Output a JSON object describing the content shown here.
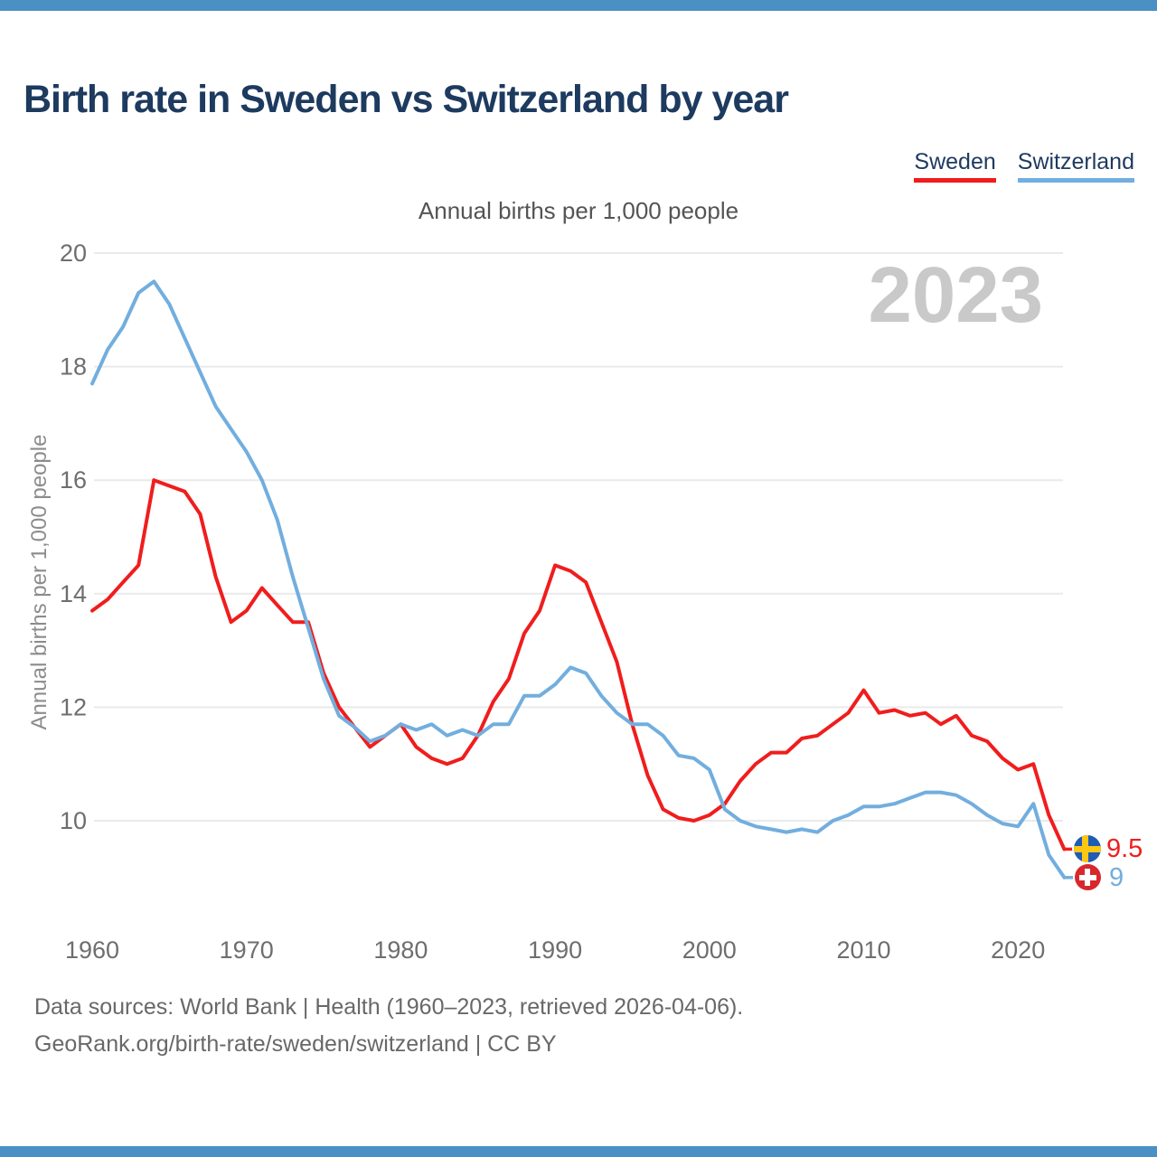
{
  "page": {
    "accent_bar_color": "#4a90c4",
    "background": "#ffffff",
    "title_color": "#1d3a5f"
  },
  "header": {
    "title": "Birth rate in Sweden vs Switzerland by year"
  },
  "legend": {
    "items": [
      {
        "label": "Sweden",
        "color": "#f01d1d"
      },
      {
        "label": "Switzerland",
        "color": "#72aede"
      }
    ]
  },
  "chart": {
    "subtitle": "Annual births per 1,000 people",
    "y_axis_title": "Annual births per 1,000 people",
    "watermark": "2023",
    "grid_color": "#eaeaea",
    "tick_color": "#6e6e6e"
  },
  "icons": {
    "sweden_flag": {
      "background": "#1e5cb5",
      "cross": "#fdc613"
    },
    "switzerland_flag": {
      "background": "#d7282c",
      "cross": "#ffffff"
    }
  },
  "chart_data": {
    "type": "line",
    "title": "Birth rate in Sweden vs Switzerland by year",
    "subtitle": "Annual births per 1,000 people",
    "xlabel": "",
    "ylabel": "Annual births per 1,000 people",
    "grid": "horizontal",
    "legend_position": "top-right",
    "ylim": [
      8.8,
      20
    ],
    "yticks": [
      10,
      12,
      14,
      16,
      18,
      20
    ],
    "xticks": [
      1960,
      1970,
      1980,
      1990,
      2000,
      2010,
      2020
    ],
    "x": [
      1960,
      1961,
      1962,
      1963,
      1964,
      1965,
      1966,
      1967,
      1968,
      1969,
      1970,
      1971,
      1972,
      1973,
      1974,
      1975,
      1976,
      1977,
      1978,
      1979,
      1980,
      1981,
      1982,
      1983,
      1984,
      1985,
      1986,
      1987,
      1988,
      1989,
      1990,
      1991,
      1992,
      1993,
      1994,
      1995,
      1996,
      1997,
      1998,
      1999,
      2000,
      2001,
      2002,
      2003,
      2004,
      2005,
      2006,
      2007,
      2008,
      2009,
      2010,
      2011,
      2012,
      2013,
      2014,
      2015,
      2016,
      2017,
      2018,
      2019,
      2020,
      2021,
      2022,
      2023
    ],
    "series": [
      {
        "name": "Sweden",
        "color": "#f01d1d",
        "end_label": "9.5",
        "values": [
          13.7,
          13.9,
          14.2,
          14.5,
          16.0,
          15.9,
          15.8,
          15.4,
          14.3,
          13.5,
          13.7,
          14.1,
          13.8,
          13.5,
          13.5,
          12.6,
          12.0,
          11.65,
          11.3,
          11.5,
          11.7,
          11.3,
          11.1,
          11.0,
          11.1,
          11.5,
          12.1,
          12.5,
          13.3,
          13.7,
          14.5,
          14.4,
          14.2,
          13.5,
          12.8,
          11.7,
          10.8,
          10.2,
          10.05,
          10.0,
          10.1,
          10.3,
          10.7,
          11.0,
          11.2,
          11.2,
          11.45,
          11.5,
          11.7,
          11.9,
          12.3,
          11.9,
          11.95,
          11.85,
          11.9,
          11.7,
          11.85,
          11.5,
          11.4,
          11.1,
          10.9,
          11.0,
          10.1,
          9.5
        ]
      },
      {
        "name": "Switzerland",
        "color": "#72aede",
        "end_label": "9",
        "values": [
          17.7,
          18.3,
          18.7,
          19.3,
          19.5,
          19.1,
          18.5,
          17.9,
          17.3,
          16.9,
          16.5,
          16.0,
          15.3,
          14.3,
          13.4,
          12.5,
          11.85,
          11.65,
          11.4,
          11.5,
          11.7,
          11.6,
          11.7,
          11.5,
          11.6,
          11.5,
          11.7,
          11.7,
          12.2,
          12.2,
          12.4,
          12.7,
          12.6,
          12.2,
          11.9,
          11.7,
          11.7,
          11.5,
          11.15,
          11.1,
          10.9,
          10.2,
          10.0,
          9.9,
          9.85,
          9.8,
          9.85,
          9.8,
          10.0,
          10.1,
          10.25,
          10.25,
          10.3,
          10.4,
          10.5,
          10.5,
          10.45,
          10.3,
          10.1,
          9.95,
          9.9,
          10.3,
          9.4,
          9.0
        ]
      }
    ]
  },
  "footer": {
    "line1": "Data sources: World Bank | Health (1960–2023, retrieved 2026-04-06).",
    "line2": "GeoRank.org/birth-rate/sweden/switzerland | CC BY"
  }
}
